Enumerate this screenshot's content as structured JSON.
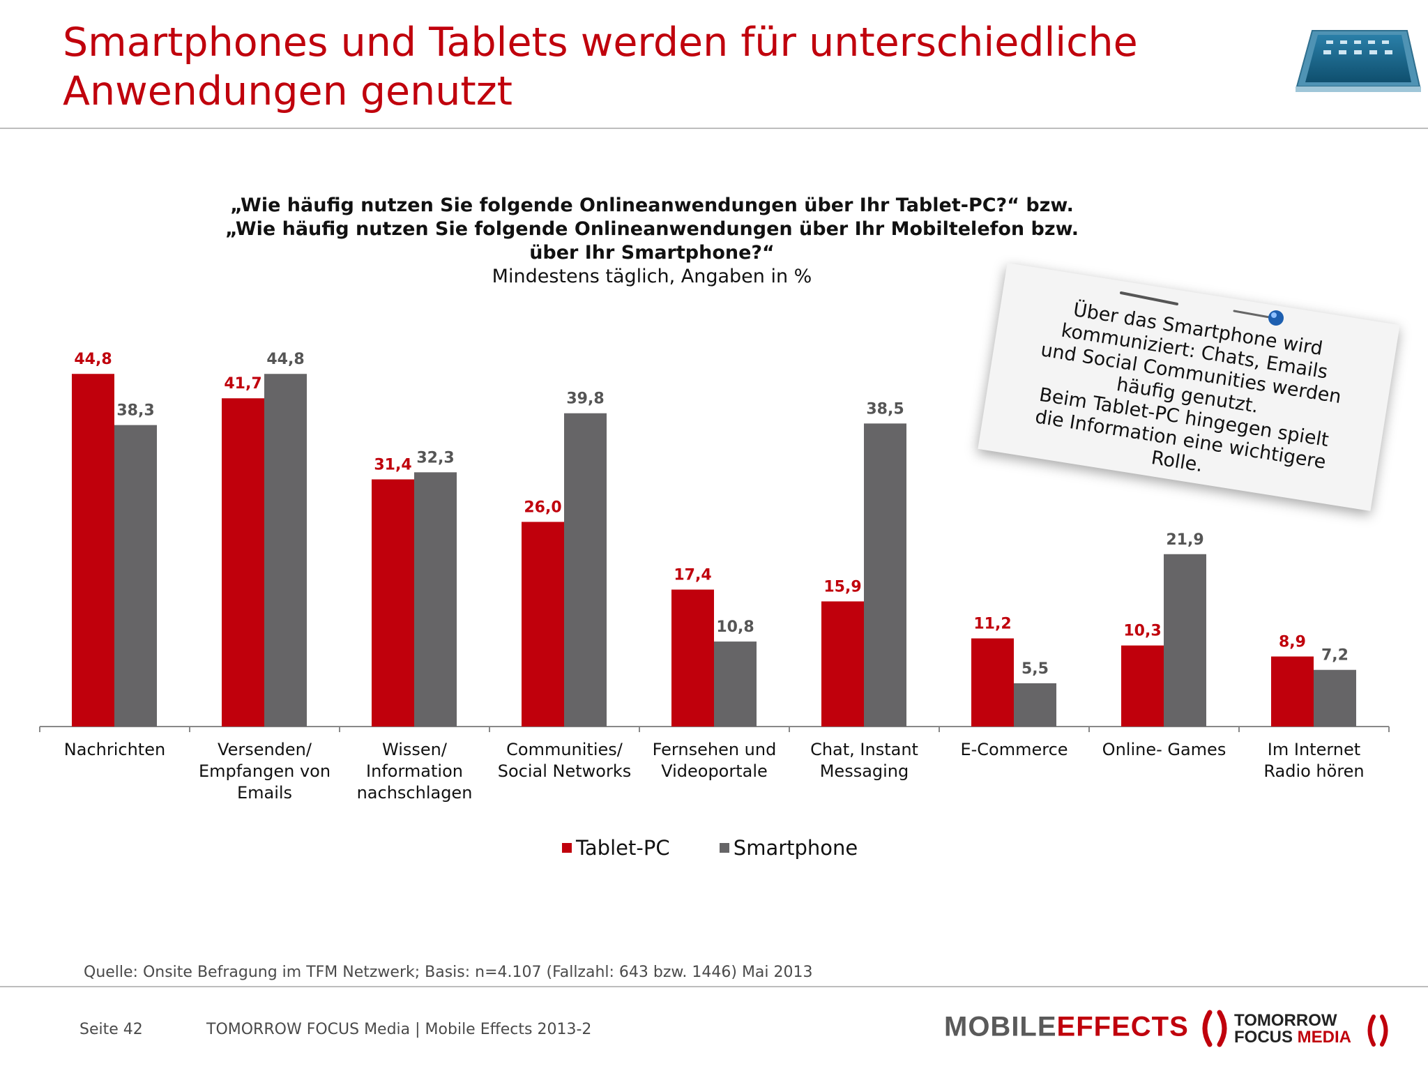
{
  "title": {
    "line1": "Smartphones und Tablets werden für unterschiedliche",
    "line2": "Anwendungen genutzt"
  },
  "question": {
    "line1": "„Wie häufig nutzen Sie folgende Onlineanwendungen über Ihr Tablet-PC?“ bzw.",
    "line2": "„Wie häufig nutzen Sie folgende Onlineanwendungen über Ihr Mobiltelefon bzw.",
    "line3": "über Ihr Smartphone?“",
    "subtitle": "Mindestens täglich, Angaben in %"
  },
  "note": {
    "lines": [
      "Über das Smartphone wird",
      "kommuniziert: Chats, Emails",
      "und Social Communities werden",
      "häufig genutzt.",
      "Beim Tablet-PC hingegen spielt",
      "die Information eine wichtigere",
      "Rolle."
    ]
  },
  "chart_data": {
    "type": "bar",
    "categories": [
      [
        "Nachrichten"
      ],
      [
        "Versenden/",
        "Empfangen von",
        "Emails"
      ],
      [
        "Wissen/",
        "Information",
        "nachschlagen"
      ],
      [
        "Communities/",
        "Social Networks"
      ],
      [
        "Fernsehen und",
        "Videoportale"
      ],
      [
        "Chat, Instant",
        "Messaging"
      ],
      [
        "E-Commerce"
      ],
      [
        "Online- Games"
      ],
      [
        "Im Internet",
        "Radio hören"
      ]
    ],
    "series": [
      {
        "name": "Tablet-PC",
        "color": "#c0000c",
        "values": [
          44.8,
          41.7,
          31.4,
          26.0,
          17.4,
          15.9,
          11.2,
          10.3,
          8.9
        ],
        "labels": [
          "44,8",
          "41,7",
          "31,4",
          "26,0",
          "17,4",
          "15,9",
          "11,2",
          "10,3",
          "8,9"
        ]
      },
      {
        "name": "Smartphone",
        "color": "#666567",
        "values": [
          38.3,
          44.8,
          32.3,
          39.8,
          10.8,
          38.5,
          5.5,
          21.9,
          7.2
        ],
        "labels": [
          "38,3",
          "44,8",
          "32,3",
          "39,8",
          "10,8",
          "38,5",
          "5,5",
          "21,9",
          "7,2"
        ]
      }
    ],
    "ylim": [
      0,
      45
    ],
    "grid": false,
    "legend_position": "bottom-center"
  },
  "source": "Quelle: Onsite Befragung im TFM Netzwerk; Basis: n=4.107 (Fallzahl: 643 bzw. 1446) Mai 2013",
  "footer": {
    "page": "Seite 42",
    "text": "TOMORROW FOCUS Media  |  Mobile Effects 2013-2"
  },
  "logos": {
    "mobile_effects_part1": "MOBILE",
    "mobile_effects_part2": "EFFECTS",
    "tf_line1": "TOMORROW",
    "tf_line2a": "FOCUS",
    "tf_line2b": "MEDIA"
  }
}
